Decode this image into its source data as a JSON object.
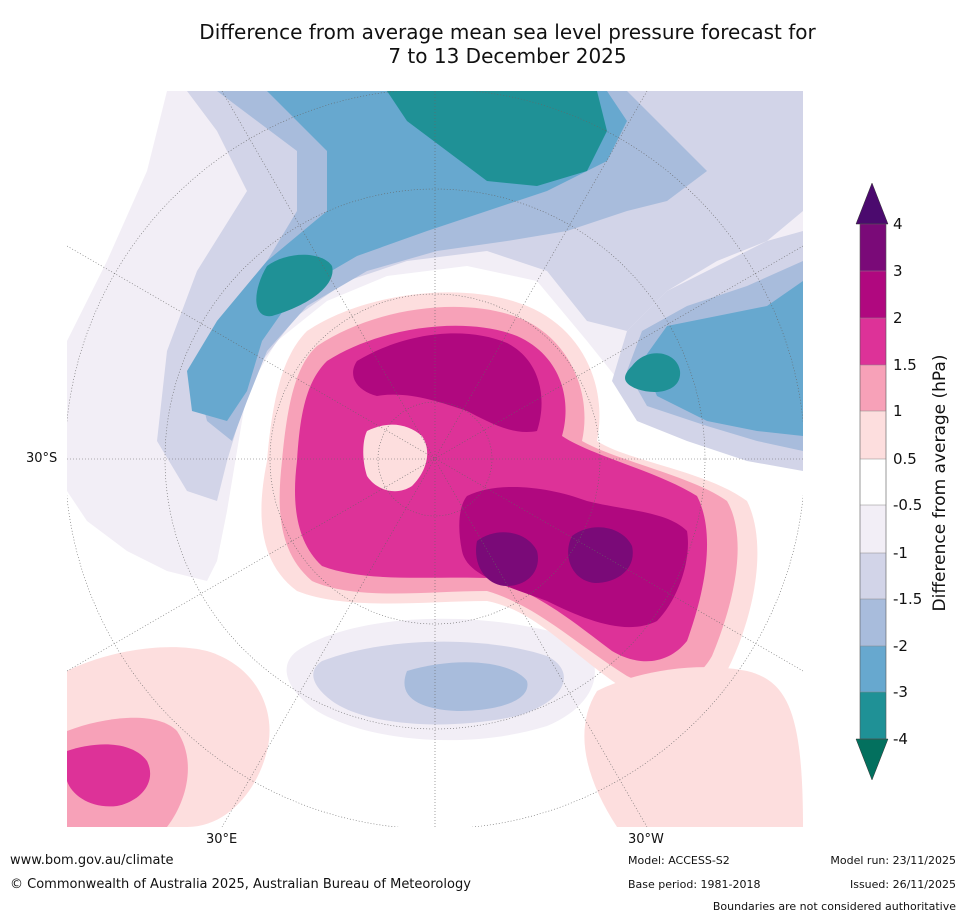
{
  "title": {
    "line1": "Difference from average mean sea level pressure forecast for",
    "line2": "7 to 13 December 2025"
  },
  "map": {
    "lat_label": "30°S",
    "lon_label_east": "30°E",
    "lon_label_west": "30°W"
  },
  "colorbar": {
    "title": "Difference from average (hPa)",
    "ticks": [
      "4",
      "3",
      "2",
      "1.5",
      "1",
      "0.5",
      "-0.5",
      "-1",
      "-1.5",
      "-2",
      "-3",
      "-4"
    ],
    "colors": {
      "above_4": "#4b0a6e",
      "c3_4": "#7a0a78",
      "c2_3": "#b0087f",
      "c15_2": "#dd3298",
      "c1_15": "#f7a1b8",
      "c05_1": "#fddede",
      "neutral": "#ffffff",
      "cm1_m05": "#f2eef6",
      "cm15_m1": "#d2d4e8",
      "cm2_m15": "#a8bcdc",
      "cm3_m2": "#67a8cf",
      "cm4_m3": "#1f9196",
      "below_m4": "#03705e"
    }
  },
  "footer": {
    "website": "www.bom.gov.au/climate",
    "copyright": "© Commonwealth of Australia 2025, Australian Bureau of Meteorology",
    "model": "Model: ACCESS-S2",
    "base_period": "Base period: 1981-2018",
    "model_run": "Model run: 23/11/2025",
    "issued": "Issued: 26/11/2025",
    "disclaimer": "Boundaries are not considered authoritative"
  }
}
